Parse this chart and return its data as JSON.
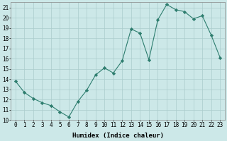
{
  "x": [
    0,
    1,
    2,
    3,
    4,
    5,
    6,
    7,
    8,
    9,
    10,
    11,
    12,
    13,
    14,
    15,
    16,
    17,
    18,
    19,
    20,
    21,
    22,
    23
  ],
  "y": [
    13.8,
    12.7,
    12.1,
    11.7,
    11.4,
    10.8,
    10.3,
    11.8,
    12.9,
    14.4,
    15.1,
    14.6,
    15.8,
    18.9,
    18.5,
    15.9,
    19.8,
    21.3,
    20.8,
    20.6,
    19.9,
    20.2,
    18.3,
    16.1
  ],
  "xlabel": "Humidex (Indice chaleur)",
  "xlim": [
    -0.5,
    23.5
  ],
  "ylim": [
    10,
    21.5
  ],
  "yticks": [
    10,
    11,
    12,
    13,
    14,
    15,
    16,
    17,
    18,
    19,
    20,
    21
  ],
  "xticks": [
    0,
    1,
    2,
    3,
    4,
    5,
    6,
    7,
    8,
    9,
    10,
    11,
    12,
    13,
    14,
    15,
    16,
    17,
    18,
    19,
    20,
    21,
    22,
    23
  ],
  "line_color": "#2d7d6e",
  "marker": "D",
  "marker_size": 2.2,
  "bg_color": "#cce8e8",
  "grid_color": "#aacccc",
  "label_fontsize": 6.5,
  "tick_fontsize": 5.5
}
